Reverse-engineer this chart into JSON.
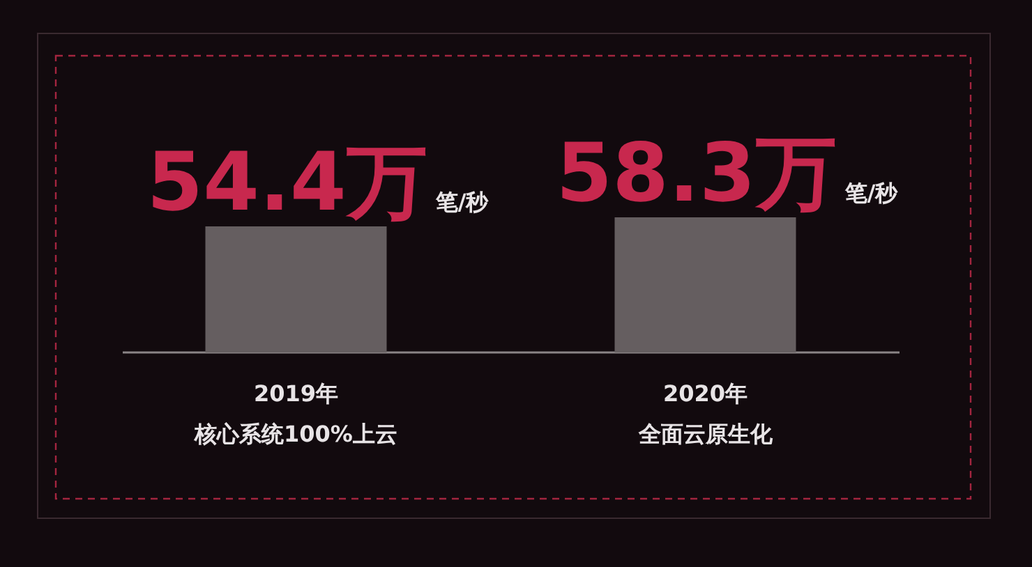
{
  "chart_data": {
    "type": "bar",
    "categories": [
      "2019年核心系统100%上云",
      "2020年全面云原生化"
    ],
    "values": [
      54.4,
      58.3
    ],
    "value_labels": [
      "54.4万",
      "58.3万"
    ],
    "color": "#655e60",
    "annotations": [
      "笔/秒",
      "笔/秒"
    ]
  }
}
